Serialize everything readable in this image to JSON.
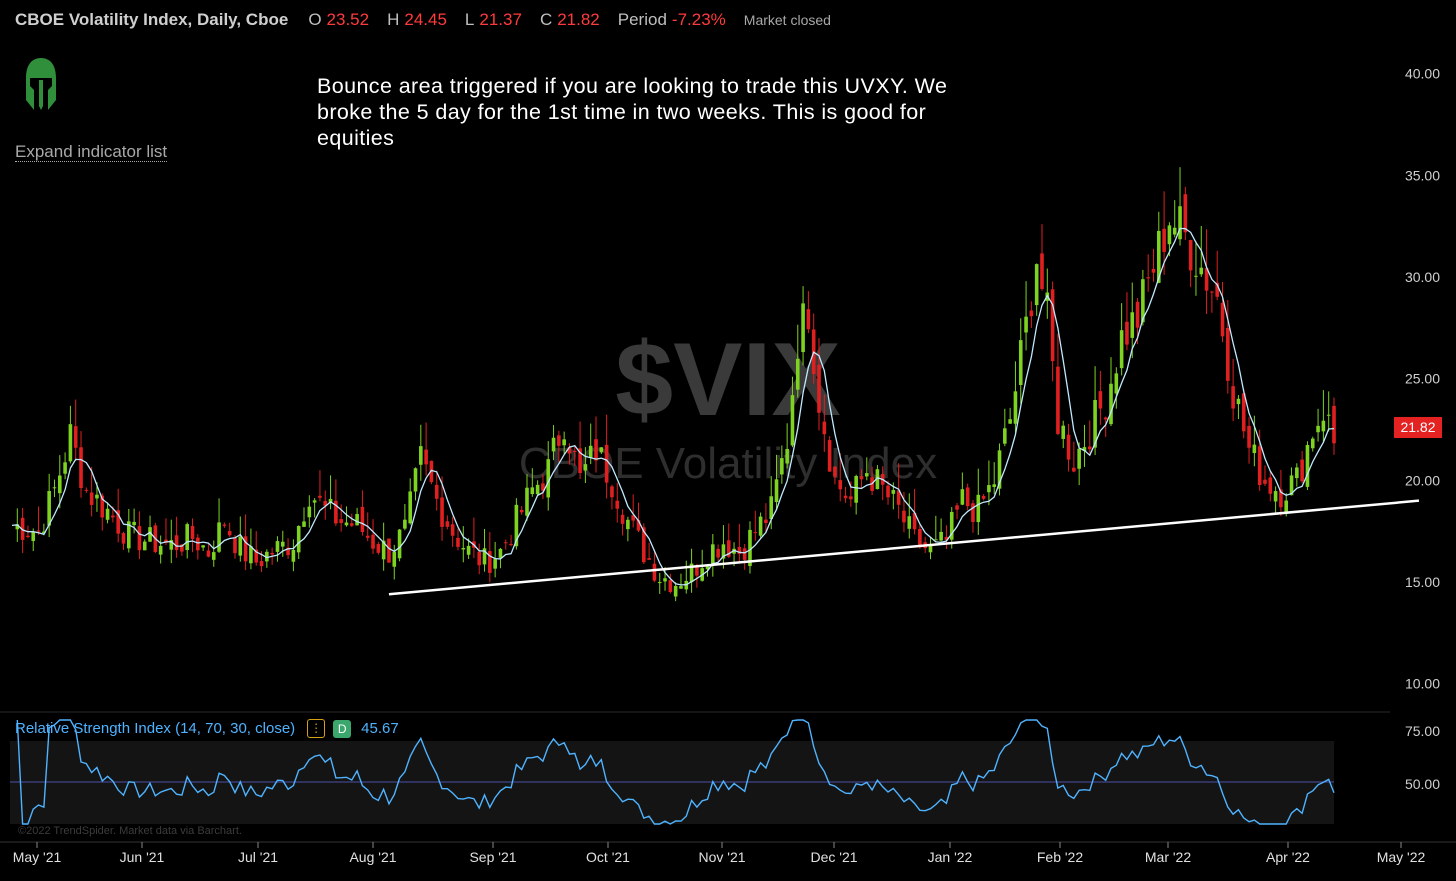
{
  "header": {
    "title": "CBOE Volatility Index, Daily, Cboe",
    "open_label": "O",
    "open_value": "23.52",
    "high_label": "H",
    "high_value": "24.45",
    "low_label": "L",
    "low_value": "21.37",
    "close_label": "C",
    "close_value": "21.82",
    "period_label": "Period",
    "period_value": "-7.23%",
    "status": "Market closed"
  },
  "expand_link": "Expand indicator list",
  "annotation": "Bounce area triggered if you are looking to trade this UVXY. We broke the 5 day for the 1st time in two weeks. This is good for equities",
  "watermark": {
    "symbol": "$VIX",
    "name": "CBOE Volatility Index"
  },
  "last_price_tag": "21.82",
  "rsi": {
    "label": "Relative Strength Index (14, 70, 30, close)",
    "menu_glyph": "⋮",
    "badge": "D",
    "value": "45.67"
  },
  "footer_credit": "©2022 TrendSpider. Market data via Barchart.",
  "colors": {
    "up": "#7ed321",
    "down": "#e02020",
    "ma": "#bfe9ff",
    "rsi": "#4fb3ff",
    "trendline": "#ffffff",
    "price_tag": "#e52222"
  },
  "chart_data": {
    "type": "candlestick",
    "ylim": [
      9,
      42
    ],
    "y_ticks": [
      "10.00",
      "15.00",
      "20.00",
      "25.00",
      "30.00",
      "35.00",
      "40.00"
    ],
    "x_ticks": [
      "May '21",
      "Jun '21",
      "Jul '21",
      "Aug '21",
      "Sep '21",
      "Oct '21",
      "Nov '21",
      "Dec '21",
      "Jan '22",
      "Feb '22",
      "Mar '22",
      "Apr '22",
      "May '22"
    ],
    "close_path": [
      [
        0,
        17.8
      ],
      [
        5,
        17.5
      ],
      [
        8,
        19.5
      ],
      [
        11,
        22.2
      ],
      [
        14,
        19.5
      ],
      [
        18,
        18.5
      ],
      [
        22,
        17.3
      ],
      [
        26,
        17.0
      ],
      [
        30,
        16.8
      ],
      [
        34,
        17.2
      ],
      [
        37,
        16.5
      ],
      [
        40,
        18.0
      ],
      [
        43,
        16.6
      ],
      [
        46,
        16.0
      ],
      [
        49,
        16.5
      ],
      [
        53,
        17.0
      ],
      [
        56,
        19.5
      ],
      [
        59,
        18.5
      ],
      [
        62,
        18.0
      ],
      [
        65,
        17.8
      ],
      [
        68,
        17.0
      ],
      [
        71,
        16.5
      ],
      [
        74,
        17.5
      ],
      [
        77,
        21.0
      ],
      [
        80,
        19.0
      ],
      [
        83,
        17.5
      ],
      [
        86,
        16.5
      ],
      [
        89,
        16.0
      ],
      [
        92,
        16.5
      ],
      [
        95,
        18.0
      ],
      [
        98,
        19.5
      ],
      [
        101,
        20.5
      ],
      [
        104,
        23.0
      ],
      [
        107,
        20.0
      ],
      [
        110,
        21.5
      ],
      [
        113,
        20.0
      ],
      [
        116,
        18.0
      ],
      [
        119,
        16.5
      ],
      [
        122,
        15.3
      ],
      [
        125,
        15.0
      ],
      [
        128,
        15.5
      ],
      [
        131,
        16.5
      ],
      [
        134,
        17.0
      ],
      [
        137,
        16.5
      ],
      [
        140,
        17.5
      ],
      [
        143,
        18.5
      ],
      [
        146,
        22.0
      ],
      [
        148,
        27.0
      ],
      [
        150,
        28.5
      ],
      [
        152,
        24.0
      ],
      [
        155,
        20.0
      ],
      [
        158,
        19.0
      ],
      [
        161,
        20.5
      ],
      [
        164,
        19.5
      ],
      [
        167,
        18.5
      ],
      [
        170,
        17.0
      ],
      [
        173,
        16.5
      ],
      [
        176,
        17.0
      ],
      [
        179,
        19.0
      ],
      [
        182,
        18.5
      ],
      [
        185,
        20.0
      ],
      [
        188,
        23.0
      ],
      [
        191,
        27.5
      ],
      [
        193,
        31.0
      ],
      [
        195,
        28.0
      ],
      [
        197,
        23.0
      ],
      [
        200,
        21.0
      ],
      [
        203,
        22.5
      ],
      [
        206,
        24.0
      ],
      [
        209,
        27.0
      ],
      [
        212,
        28.0
      ],
      [
        215,
        30.5
      ],
      [
        218,
        33.0
      ],
      [
        221,
        32.0
      ],
      [
        224,
        30.5
      ],
      [
        227,
        29.0
      ],
      [
        230,
        24.5
      ],
      [
        233,
        21.5
      ],
      [
        236,
        20.0
      ],
      [
        239,
        19.5
      ],
      [
        242,
        20.0
      ],
      [
        245,
        22.5
      ],
      [
        247,
        23.5
      ],
      [
        249,
        22.0
      ]
    ],
    "trendline": [
      [
        71,
        14.4
      ],
      [
        265,
        19.0
      ]
    ],
    "last_close": 21.82
  }
}
